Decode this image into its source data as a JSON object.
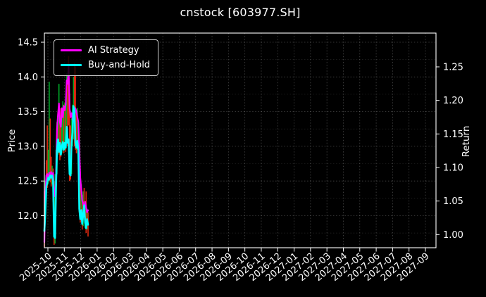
{
  "chart_data": {
    "type": "line",
    "title": "cnstock [603977.SH]",
    "left_axis": {
      "label": "Price",
      "ticks": [
        14.5,
        14.0,
        13.5,
        13.0,
        12.5,
        12.0
      ],
      "minor_ticks": [
        14.25,
        13.75,
        13.25,
        12.75,
        12.25,
        11.75
      ],
      "range": [
        11.54,
        14.63
      ]
    },
    "right_axis": {
      "label": "Return",
      "ticks": [
        1.25,
        1.2,
        1.15,
        1.1,
        1.05,
        1.0
      ],
      "range": [
        0.98,
        1.3
      ]
    },
    "x_axis": {
      "tick_labels": [
        "2025-10",
        "2025-11",
        "2025-12",
        "2026-01",
        "2026-02",
        "2026-03",
        "2026-04",
        "2026-05",
        "2026-06",
        "2026-07",
        "2026-08",
        "2026-09",
        "2026-10",
        "2026-11",
        "2026-12",
        "2027-01",
        "2027-02",
        "2027-03",
        "2027-04",
        "2027-05",
        "2027-06",
        "2027-07",
        "2027-08",
        "2027-09"
      ],
      "rotation_deg": -40
    },
    "legend": [
      {
        "name": "AI Strategy",
        "color": "#ff00ff"
      },
      {
        "name": "Buy-and-Hold",
        "color": "#00ffff"
      }
    ],
    "series": [
      {
        "name": "AI Strategy",
        "color": "#ff00ff",
        "axis": "price",
        "values": [
          11.62,
          12.3,
          12.58,
          12.6,
          12.55,
          12.62,
          12.6,
          12.63,
          12.55,
          12.62,
          12.32,
          12.28,
          12.55,
          13.25,
          13.45,
          13.62,
          13.35,
          13.28,
          13.55,
          13.42,
          13.58,
          13.52,
          13.6,
          13.95,
          13.9,
          14.15,
          13.55,
          13.42,
          13.48,
          13.38,
          13.52,
          13.45,
          13.55,
          13.5,
          13.42,
          13.35,
          12.95,
          12.55,
          12.38,
          12.22,
          12.18,
          12.1,
          12.2,
          12.12,
          12.05,
          12.08
        ]
      },
      {
        "name": "Buy-and-Hold",
        "color": "#00ffff",
        "axis": "price",
        "values": [
          11.78,
          12.05,
          12.42,
          12.48,
          12.55,
          12.52,
          12.58,
          12.55,
          12.58,
          12.5,
          11.7,
          11.68,
          12.4,
          12.95,
          13.1,
          12.92,
          13.05,
          12.88,
          13.0,
          13.06,
          12.95,
          13.05,
          12.98,
          13.28,
          13.05,
          13.1,
          12.6,
          12.58,
          13.05,
          13.2,
          13.58,
          13.52,
          13.05,
          12.98,
          13.08,
          12.95,
          12.1,
          11.95,
          12.08,
          11.88,
          12.02,
          12.15,
          11.9,
          11.82,
          11.95,
          11.87
        ]
      }
    ],
    "candles": [
      [
        11.55,
        12.35,
        "d"
      ],
      [
        11.95,
        12.5,
        "u"
      ],
      [
        12.35,
        12.8,
        "d"
      ],
      [
        12.4,
        13.3,
        "d"
      ],
      [
        12.45,
        12.95,
        "u"
      ],
      [
        12.5,
        13.93,
        "u"
      ],
      [
        12.48,
        13.4,
        "d"
      ],
      [
        12.42,
        12.85,
        "d"
      ],
      [
        12.45,
        12.72,
        "u"
      ],
      [
        12.2,
        12.68,
        "d"
      ],
      [
        11.58,
        12.5,
        "d"
      ],
      [
        11.6,
        12.6,
        "u"
      ],
      [
        12.35,
        12.95,
        "u"
      ],
      [
        12.6,
        13.35,
        "u"
      ],
      [
        12.9,
        13.5,
        "d"
      ],
      [
        12.88,
        13.9,
        "u"
      ],
      [
        12.8,
        13.45,
        "d"
      ],
      [
        12.85,
        13.55,
        "d"
      ],
      [
        12.9,
        13.5,
        "u"
      ],
      [
        12.95,
        13.65,
        "u"
      ],
      [
        12.9,
        13.6,
        "d"
      ],
      [
        12.95,
        13.62,
        "u"
      ],
      [
        12.92,
        13.66,
        "d"
      ],
      [
        13.2,
        14.05,
        "u"
      ],
      [
        13.0,
        14.0,
        "d"
      ],
      [
        13.3,
        14.3,
        "d"
      ],
      [
        12.5,
        13.75,
        "d"
      ],
      [
        12.52,
        13.3,
        "d"
      ],
      [
        12.6,
        13.4,
        "u"
      ],
      [
        13.0,
        13.6,
        "u"
      ],
      [
        13.1,
        14.0,
        "u"
      ],
      [
        13.0,
        14.2,
        "d"
      ],
      [
        12.95,
        14.15,
        "d"
      ],
      [
        12.9,
        13.5,
        "d"
      ],
      [
        12.95,
        13.55,
        "u"
      ],
      [
        12.88,
        13.3,
        "d"
      ],
      [
        12.05,
        13.0,
        "d"
      ],
      [
        11.9,
        12.55,
        "d"
      ],
      [
        11.95,
        12.45,
        "u"
      ],
      [
        11.8,
        12.3,
        "d"
      ],
      [
        11.85,
        12.35,
        "u"
      ],
      [
        12.0,
        12.4,
        "d"
      ],
      [
        11.82,
        12.2,
        "u"
      ],
      [
        11.75,
        12.35,
        "d"
      ],
      [
        11.8,
        12.1,
        "u"
      ],
      [
        11.7,
        12.05,
        "d"
      ]
    ],
    "colors": {
      "background": "#000000",
      "text": "#ffffff",
      "spine": "#ffffff",
      "grid": "#ffffff",
      "candle_up": "#00a828",
      "candle_down": "#e02810"
    }
  }
}
